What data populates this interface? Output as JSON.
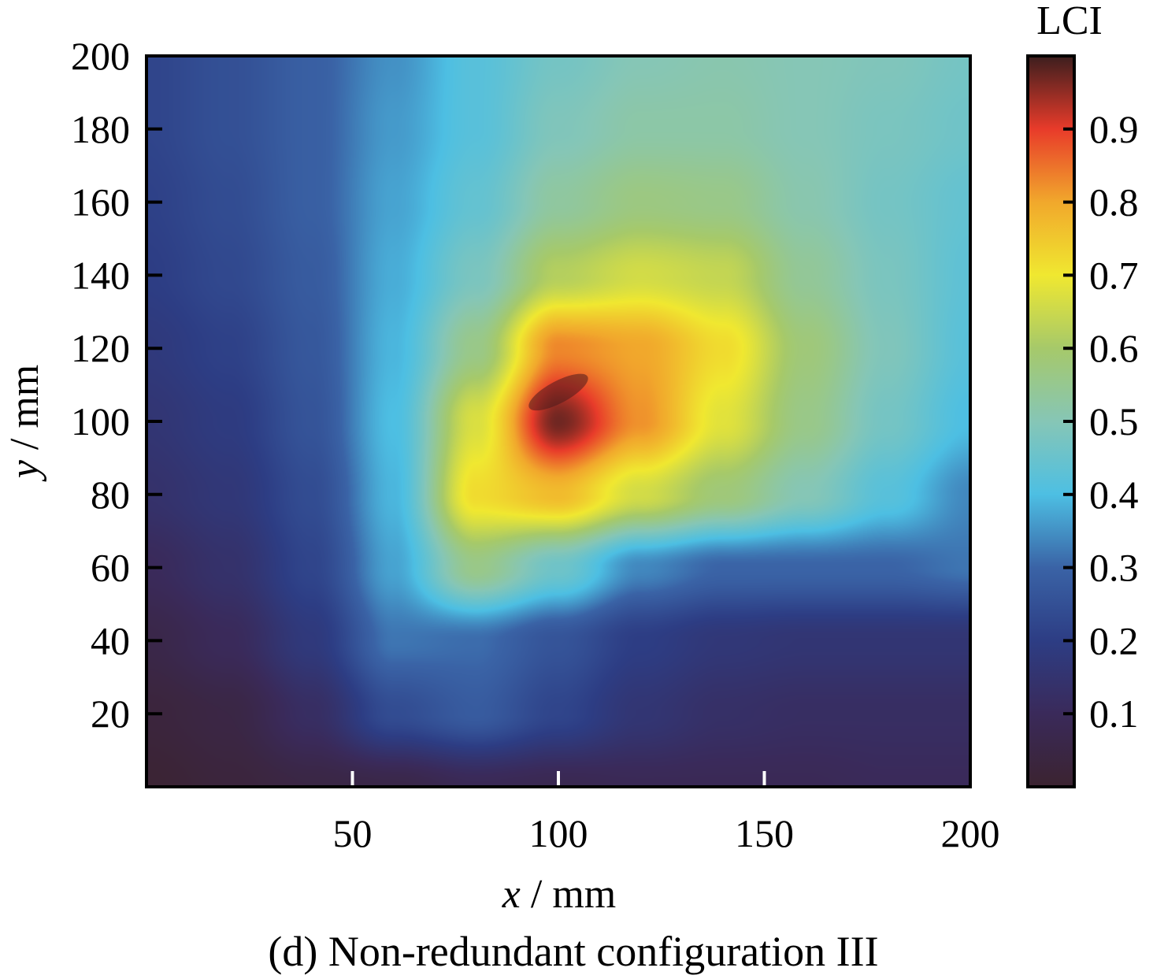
{
  "chart_data": {
    "type": "heatmap",
    "caption": "(d) Non-redundant configuration III",
    "xlabel": {
      "var": "x",
      "unit": " / mm"
    },
    "ylabel": {
      "var": "y",
      "unit": " / mm"
    },
    "xlim": [
      0,
      200
    ],
    "ylim": [
      0,
      200
    ],
    "x_ticks": [
      50,
      100,
      150,
      200
    ],
    "y_ticks": [
      20,
      40,
      60,
      80,
      100,
      120,
      140,
      160,
      180,
      200
    ],
    "colorbar": {
      "title": "LCI",
      "range": [
        0,
        1
      ],
      "ticks": [
        0.1,
        0.2,
        0.3,
        0.4,
        0.5,
        0.6,
        0.7,
        0.8,
        0.9
      ],
      "tick_labels": [
        "0.1",
        "0.2",
        "0.3",
        "0.4",
        "0.5",
        "0.6",
        "0.7",
        "0.8",
        "0.9"
      ]
    },
    "colormap": [
      "#3b2330",
      "#3a2a5a",
      "#2d3d84",
      "#3a63a6",
      "#4dbfe3",
      "#86c6b6",
      "#a6c96a",
      "#f0e830",
      "#f1a82c",
      "#e83b2a",
      "#3c1e1e"
    ],
    "peak": {
      "x": 100,
      "y": 108,
      "value": 1.0
    },
    "grid": "on-samples",
    "grid_x": [
      0,
      20,
      40,
      60,
      80,
      100,
      120,
      140,
      160,
      180,
      200
    ],
    "grid_y": [
      0,
      20,
      40,
      60,
      80,
      100,
      120,
      140,
      160,
      180,
      200
    ],
    "z": [
      [
        0.01,
        0.03,
        0.05,
        0.06,
        0.09,
        0.08,
        0.09,
        0.09,
        0.09,
        0.1,
        0.1
      ],
      [
        0.03,
        0.05,
        0.12,
        0.24,
        0.28,
        0.22,
        0.16,
        0.13,
        0.12,
        0.12,
        0.12
      ],
      [
        0.06,
        0.1,
        0.18,
        0.32,
        0.31,
        0.26,
        0.2,
        0.17,
        0.16,
        0.16,
        0.16
      ],
      [
        0.1,
        0.14,
        0.22,
        0.37,
        0.56,
        0.46,
        0.34,
        0.3,
        0.3,
        0.3,
        0.32
      ],
      [
        0.14,
        0.17,
        0.24,
        0.39,
        0.72,
        0.77,
        0.66,
        0.58,
        0.5,
        0.42,
        0.34
      ],
      [
        0.16,
        0.19,
        0.26,
        0.4,
        0.67,
        0.97,
        0.82,
        0.68,
        0.56,
        0.47,
        0.4
      ],
      [
        0.18,
        0.21,
        0.27,
        0.39,
        0.56,
        0.83,
        0.8,
        0.72,
        0.58,
        0.49,
        0.42
      ],
      [
        0.2,
        0.23,
        0.28,
        0.38,
        0.48,
        0.62,
        0.66,
        0.64,
        0.54,
        0.48,
        0.43
      ],
      [
        0.21,
        0.24,
        0.29,
        0.37,
        0.44,
        0.53,
        0.57,
        0.56,
        0.51,
        0.47,
        0.44
      ],
      [
        0.22,
        0.25,
        0.29,
        0.36,
        0.42,
        0.49,
        0.52,
        0.52,
        0.5,
        0.48,
        0.46
      ],
      [
        0.22,
        0.25,
        0.29,
        0.35,
        0.42,
        0.47,
        0.5,
        0.51,
        0.5,
        0.49,
        0.47
      ]
    ]
  }
}
